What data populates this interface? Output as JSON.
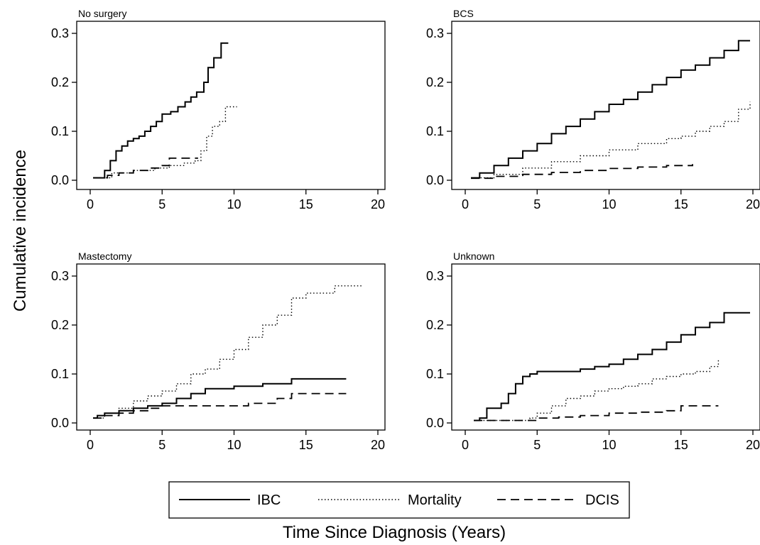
{
  "chart_data": {
    "type": "line",
    "ylabel": "Cumulative incidence",
    "xlabel": "Time Since Diagnosis (Years)",
    "xlim": [
      0,
      20
    ],
    "ylim": [
      0,
      0.3
    ],
    "xticks": [
      0,
      5,
      10,
      15,
      20
    ],
    "yticks": [
      0.0,
      0.1,
      0.2,
      0.3
    ],
    "xtick_labels": [
      "0",
      "5",
      "10",
      "15",
      "20"
    ],
    "ytick_labels": [
      "0.0",
      "0.1",
      "0.2",
      "0.3"
    ],
    "legend": {
      "placement": "bottom-center",
      "entries": [
        {
          "key": "ibc",
          "label": "IBC"
        },
        {
          "key": "mort",
          "label": "Mortality"
        },
        {
          "key": "dcis",
          "label": "DCIS"
        }
      ]
    },
    "panels": [
      {
        "title": "No surgery",
        "series": [
          {
            "name": "IBC",
            "x": [
              0.2,
              1.0,
              1.4,
              1.8,
              2.2,
              2.6,
              3.0,
              3.4,
              3.8,
              4.2,
              4.6,
              5.0,
              5.6,
              6.1,
              6.6,
              7.0,
              7.4,
              7.9,
              8.2,
              8.6,
              9.1,
              9.6
            ],
            "y": [
              0.005,
              0.02,
              0.04,
              0.06,
              0.07,
              0.08,
              0.085,
              0.09,
              0.1,
              0.11,
              0.12,
              0.135,
              0.14,
              0.15,
              0.16,
              0.17,
              0.18,
              0.2,
              0.23,
              0.25,
              0.28,
              0.28
            ]
          },
          {
            "name": "Mortality",
            "x": [
              0.2,
              1.5,
              3.0,
              4.5,
              5.5,
              6.5,
              7.3,
              7.7,
              8.1,
              8.5,
              9.0,
              9.4,
              10.2
            ],
            "y": [
              0.005,
              0.015,
              0.02,
              0.025,
              0.03,
              0.035,
              0.04,
              0.06,
              0.09,
              0.11,
              0.12,
              0.15,
              0.15
            ]
          },
          {
            "name": "DCIS",
            "x": [
              0.2,
              1.2,
              2.0,
              3.0,
              4.0,
              5.0,
              5.5,
              7.5
            ],
            "y": [
              0.005,
              0.01,
              0.015,
              0.02,
              0.025,
              0.03,
              0.045,
              0.045
            ]
          }
        ]
      },
      {
        "title": "BCS",
        "series": [
          {
            "name": "IBC",
            "x": [
              0.4,
              1,
              2,
              3,
              4,
              5,
              6,
              7,
              8,
              9,
              10,
              11,
              12,
              13,
              14,
              15,
              16,
              17,
              18,
              19,
              19.8
            ],
            "y": [
              0.005,
              0.015,
              0.03,
              0.045,
              0.06,
              0.075,
              0.095,
              0.11,
              0.125,
              0.14,
              0.155,
              0.165,
              0.18,
              0.195,
              0.21,
              0.225,
              0.235,
              0.25,
              0.265,
              0.285,
              0.285
            ]
          },
          {
            "name": "Mortality",
            "x": [
              0.4,
              2,
              4,
              6,
              8,
              10,
              12,
              14,
              15,
              16,
              17,
              18,
              19,
              19.8
            ],
            "y": [
              0.005,
              0.012,
              0.025,
              0.038,
              0.05,
              0.062,
              0.075,
              0.085,
              0.09,
              0.1,
              0.11,
              0.12,
              0.145,
              0.16
            ]
          },
          {
            "name": "DCIS",
            "x": [
              0.4,
              2,
              4,
              6,
              8,
              10,
              12,
              14,
              15.8
            ],
            "y": [
              0.004,
              0.008,
              0.012,
              0.016,
              0.02,
              0.024,
              0.027,
              0.03,
              0.033
            ]
          }
        ]
      },
      {
        "title": "Mastectomy",
        "series": [
          {
            "name": "IBC",
            "x": [
              0.2,
              0.5,
              1,
              2,
              3,
              4,
              5,
              6,
              7,
              8,
              10,
              12,
              14,
              17.8
            ],
            "y": [
              0.01,
              0.015,
              0.02,
              0.025,
              0.03,
              0.035,
              0.04,
              0.05,
              0.06,
              0.07,
              0.075,
              0.08,
              0.09,
              0.09
            ]
          },
          {
            "name": "Mortality",
            "x": [
              0.2,
              1,
              2,
              3,
              4,
              5,
              6,
              7,
              8,
              9,
              10,
              11,
              12,
              13,
              14,
              15,
              17,
              18.9
            ],
            "y": [
              0.01,
              0.02,
              0.03,
              0.045,
              0.055,
              0.065,
              0.08,
              0.1,
              0.11,
              0.13,
              0.15,
              0.175,
              0.2,
              0.22,
              0.255,
              0.265,
              0.28,
              0.28
            ]
          },
          {
            "name": "DCIS",
            "x": [
              0.2,
              1,
              2,
              3,
              4,
              5,
              7,
              9,
              11,
              13,
              14,
              17.8
            ],
            "y": [
              0.01,
              0.015,
              0.02,
              0.025,
              0.03,
              0.035,
              0.035,
              0.035,
              0.04,
              0.05,
              0.06,
              0.06
            ]
          }
        ]
      },
      {
        "title": "Unknown",
        "series": [
          {
            "name": "IBC",
            "x": [
              0.6,
              1,
              1.5,
              2.5,
              3,
              3.5,
              4,
              4.5,
              5,
              6,
              8,
              9,
              10,
              11,
              12,
              13,
              14,
              15,
              16,
              17,
              18,
              19.8
            ],
            "y": [
              0.005,
              0.01,
              0.03,
              0.04,
              0.06,
              0.08,
              0.095,
              0.1,
              0.105,
              0.105,
              0.11,
              0.115,
              0.12,
              0.13,
              0.14,
              0.15,
              0.165,
              0.18,
              0.195,
              0.205,
              0.225,
              0.225
            ]
          },
          {
            "name": "Mortality",
            "x": [
              0.6,
              4.5,
              5,
              6,
              7,
              8,
              9,
              10,
              11,
              12,
              13,
              14,
              15,
              16,
              17,
              17.6
            ],
            "y": [
              0.005,
              0.01,
              0.02,
              0.035,
              0.05,
              0.055,
              0.065,
              0.07,
              0.075,
              0.08,
              0.09,
              0.095,
              0.1,
              0.105,
              0.115,
              0.13
            ]
          },
          {
            "name": "DCIS",
            "x": [
              0.6,
              5,
              6.5,
              8,
              10,
              12,
              14,
              15,
              17.6
            ],
            "y": [
              0.005,
              0.01,
              0.012,
              0.015,
              0.02,
              0.022,
              0.025,
              0.035,
              0.035
            ]
          }
        ]
      }
    ]
  }
}
